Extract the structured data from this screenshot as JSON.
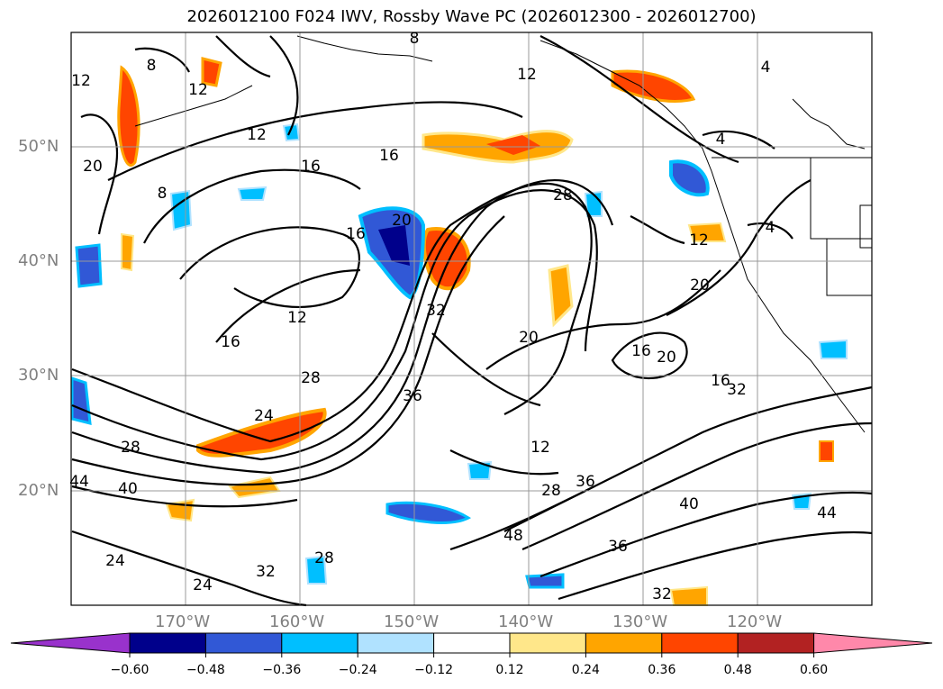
{
  "title": "2026012100 F024 IWV, Rossby Wave PC (2026012300 - 2026012700)",
  "map": {
    "lon_range": [
      -180,
      -110
    ],
    "lat_range": [
      10,
      60
    ],
    "grid": true,
    "lat_labels": [
      "50°N",
      "40°N",
      "30°N",
      "20°N"
    ],
    "lon_labels": [
      "170°W",
      "160°W",
      "150°W",
      "140°W",
      "130°W",
      "120°W"
    ],
    "contour_labels": [
      "12",
      "8",
      "20",
      "12",
      "8",
      "12",
      "16",
      "16",
      "20",
      "16",
      "8",
      "12",
      "4",
      "4",
      "4",
      "28",
      "12",
      "20",
      "32",
      "36",
      "20",
      "16",
      "20",
      "16",
      "12",
      "28",
      "24",
      "28",
      "40",
      "44",
      "12",
      "16",
      "32",
      "28",
      "36",
      "40",
      "44",
      "48",
      "36",
      "32",
      "24",
      "24",
      "32",
      "28"
    ]
  },
  "colorbar": {
    "ticks": [
      "−0.60",
      "−0.48",
      "−0.36",
      "−0.24",
      "−0.12",
      "0.12",
      "0.24",
      "0.36",
      "0.48",
      "0.60"
    ],
    "colors": [
      "#9932cc",
      "#00008b",
      "#3158d6",
      "#00bfff",
      "#b0e2ff",
      "#ffffff",
      "#ffe78a",
      "#ffa500",
      "#ff4500",
      "#b22222",
      "#ff88aa"
    ]
  }
}
